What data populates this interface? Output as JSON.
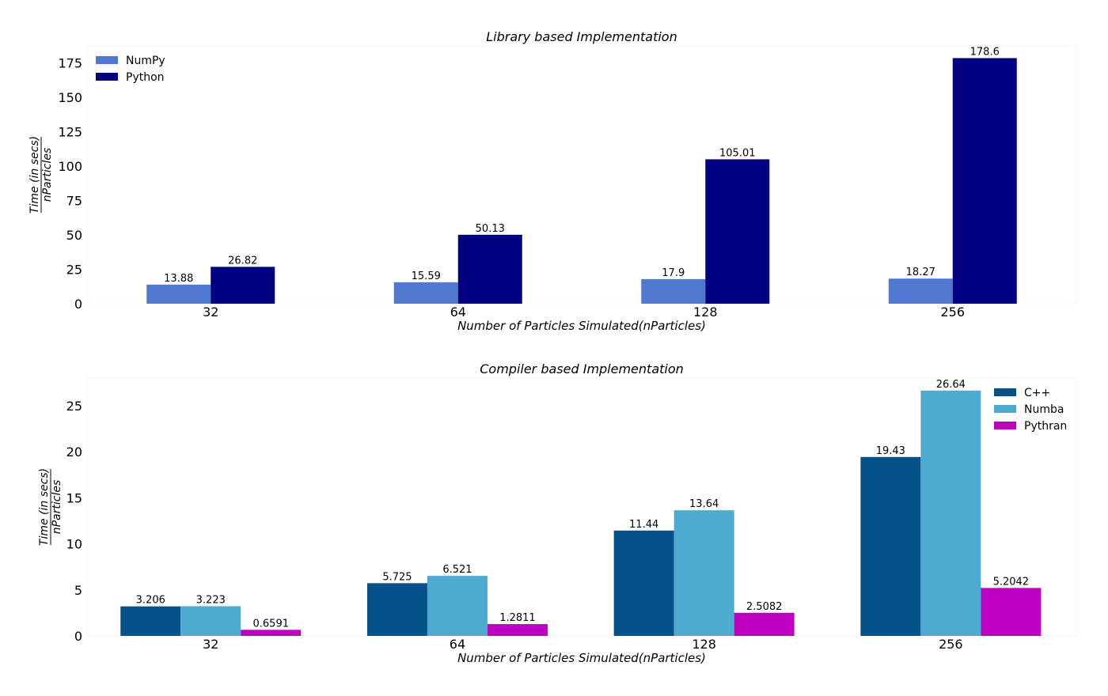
{
  "chart_data": [
    {
      "type": "bar",
      "title": "Library based Implementation",
      "xlabel": "Number of Particles Simulated(nParticles)",
      "ylabel_numerator": "Time (in secs)",
      "ylabel_denominator": "nParticles",
      "categories": [
        "32",
        "64",
        "128",
        "256"
      ],
      "yticks": [
        0,
        25,
        50,
        75,
        100,
        125,
        150,
        175
      ],
      "ylim": [
        0,
        187.5
      ],
      "legend_position": "top-left",
      "series": [
        {
          "name": "NumPy",
          "color": "#4f78d0",
          "values": [
            13.88,
            15.59,
            17.9,
            18.27
          ],
          "labels": [
            "13.88",
            "15.59",
            "17.9",
            "18.27"
          ]
        },
        {
          "name": "Python",
          "color": "#000080",
          "values": [
            26.82,
            50.13,
            105.01,
            178.6
          ],
          "labels": [
            "26.82",
            "50.13",
            "105.01",
            "178.6"
          ]
        }
      ]
    },
    {
      "type": "bar",
      "title": "Compiler based Implementation",
      "xlabel": "Number of Particles Simulated(nParticles)",
      "ylabel_numerator": "Time (in secs)",
      "ylabel_denominator": "nParticles",
      "categories": [
        "32",
        "64",
        "128",
        "256"
      ],
      "yticks": [
        0,
        5,
        10,
        15,
        20,
        25
      ],
      "ylim": [
        0,
        28
      ],
      "legend_position": "top-right",
      "series": [
        {
          "name": "C++",
          "color": "#045289",
          "values": [
            3.206,
            5.725,
            11.44,
            19.43
          ],
          "labels": [
            "3.206",
            "5.725",
            "11.44",
            "19.43"
          ]
        },
        {
          "name": "Numba",
          "color": "#4eaad0",
          "values": [
            3.223,
            6.521,
            13.64,
            26.64
          ],
          "labels": [
            "3.223",
            "6.521",
            "13.64",
            "26.64"
          ]
        },
        {
          "name": "Pythran",
          "color": "#c000c0",
          "values": [
            0.6591,
            1.2811,
            2.5082,
            5.2042
          ],
          "labels": [
            "0.6591",
            "1.2811",
            "2.5082",
            "5.2042"
          ]
        }
      ]
    }
  ]
}
